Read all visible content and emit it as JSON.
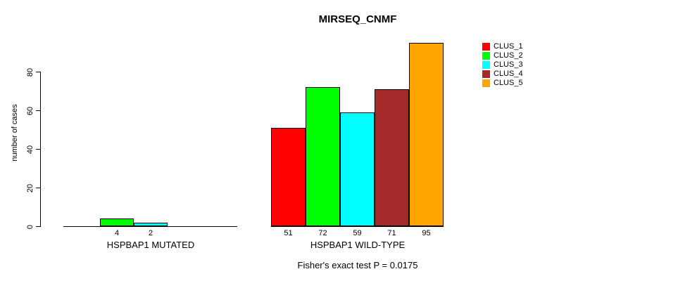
{
  "chart_data": {
    "type": "bar",
    "title": "MIRSEQ_CNMF",
    "ylabel": "number of cases",
    "xlabel": "",
    "yticks": [
      0,
      20,
      40,
      60,
      80
    ],
    "ylim": [
      0,
      95
    ],
    "grid": false,
    "legend_position": "right-top",
    "bar_outline_color": "#000000",
    "clusters": [
      {
        "label": "CLUS_1",
        "color": "#ff0000"
      },
      {
        "label": "CLUS_2",
        "color": "#00ff00"
      },
      {
        "label": "CLUS_3",
        "color": "#00ffff"
      },
      {
        "label": "CLUS_4",
        "color": "#a52a2a"
      },
      {
        "label": "CLUS_5",
        "color": "#ffa500"
      }
    ],
    "groups": [
      {
        "label": "HSPBAP1 MUTATED",
        "values": [
          0,
          4,
          2,
          0,
          0
        ]
      },
      {
        "label": "HSPBAP1 WILD-TYPE",
        "values": [
          51,
          72,
          59,
          71,
          95
        ]
      }
    ],
    "annotation": "Fisher's exact test P = 0.0175"
  }
}
